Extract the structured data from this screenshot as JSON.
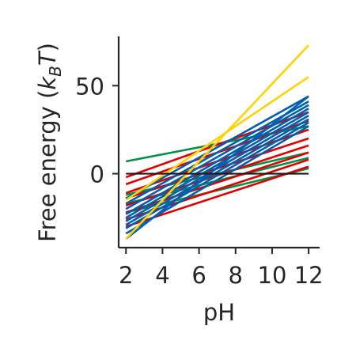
{
  "chart_data": {
    "type": "line",
    "xlabel": "pH",
    "ylabel_parts": [
      "Free energy (",
      "k",
      "B",
      "T",
      ")"
    ],
    "xlim": [
      1.6,
      12.6
    ],
    "ylim": [
      -42,
      78
    ],
    "xticks": [
      2,
      4,
      6,
      8,
      10,
      12
    ],
    "yticks": [
      0,
      50
    ],
    "grid": false,
    "legend": "none",
    "reference_line": {
      "y": 0,
      "color": "#1a1a1a"
    },
    "series_colors": {
      "green": "#009245",
      "red": "#e00000",
      "blue": "#0060b0",
      "yellow": "#ffd200"
    },
    "series": [
      {
        "color": "green",
        "x": [
          2,
          12
        ],
        "y": [
          7,
          27
        ]
      },
      {
        "color": "green",
        "x": [
          2,
          12
        ],
        "y": [
          -12,
          12
        ]
      },
      {
        "color": "green",
        "x": [
          2,
          12
        ],
        "y": [
          -17,
          9
        ]
      },
      {
        "color": "green",
        "x": [
          2,
          12
        ],
        "y": [
          -22,
          3
        ]
      },
      {
        "color": "red",
        "x": [
          2,
          12
        ],
        "y": [
          -2,
          35
        ]
      },
      {
        "color": "red",
        "x": [
          2,
          12
        ],
        "y": [
          -6,
          30
        ]
      },
      {
        "color": "red",
        "x": [
          2,
          12
        ],
        "y": [
          -11,
          25
        ]
      },
      {
        "color": "red",
        "x": [
          2,
          12
        ],
        "y": [
          -14,
          20
        ]
      },
      {
        "color": "red",
        "x": [
          2,
          12
        ],
        "y": [
          -18,
          16
        ]
      },
      {
        "color": "red",
        "x": [
          2,
          12
        ],
        "y": [
          -22,
          12
        ]
      },
      {
        "color": "red",
        "x": [
          2,
          12
        ],
        "y": [
          -26,
          8
        ]
      },
      {
        "color": "red",
        "x": [
          2,
          12
        ],
        "y": [
          -30,
          4
        ]
      },
      {
        "color": "blue",
        "x": [
          2,
          12
        ],
        "y": [
          -14,
          44
        ]
      },
      {
        "color": "blue",
        "x": [
          2,
          12
        ],
        "y": [
          -17,
          41
        ]
      },
      {
        "color": "blue",
        "x": [
          2,
          12
        ],
        "y": [
          -20,
          39
        ]
      },
      {
        "color": "blue",
        "x": [
          2,
          12
        ],
        "y": [
          -23,
          37
        ]
      },
      {
        "color": "blue",
        "x": [
          2,
          12
        ],
        "y": [
          -25,
          35
        ]
      },
      {
        "color": "blue",
        "x": [
          2,
          12
        ],
        "y": [
          -27,
          33
        ]
      },
      {
        "color": "blue",
        "x": [
          2,
          12
        ],
        "y": [
          -29,
          31
        ]
      },
      {
        "color": "blue",
        "x": [
          2,
          12
        ],
        "y": [
          -31,
          29
        ]
      },
      {
        "color": "blue",
        "x": [
          2,
          12
        ],
        "y": [
          -34,
          27
        ]
      },
      {
        "color": "blue",
        "x": [
          2,
          12
        ],
        "y": [
          -37,
          44
        ]
      },
      {
        "color": "yellow",
        "x": [
          2,
          12
        ],
        "y": [
          -15,
          55
        ]
      },
      {
        "color": "yellow",
        "x": [
          2,
          12
        ],
        "y": [
          -37,
          73
        ]
      }
    ]
  }
}
